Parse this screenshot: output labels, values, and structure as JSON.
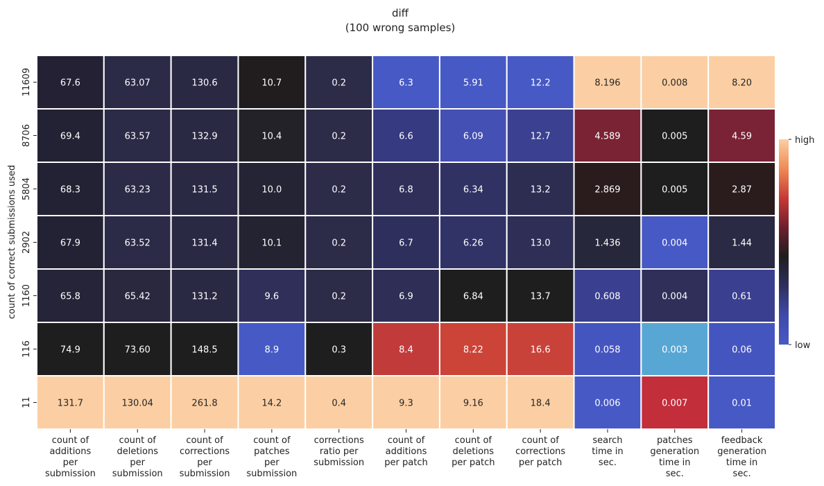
{
  "chart_data": {
    "type": "heatmap",
    "title": "diff",
    "subtitle": "(100 wrong samples)",
    "ylabel": "count of correct submissions used",
    "xlabel": "",
    "columns": [
      [
        "count of",
        "additions",
        "per",
        "submission"
      ],
      [
        "count of",
        "deletions",
        "per",
        "submission"
      ],
      [
        "count of",
        "corrections",
        "per",
        "submission"
      ],
      [
        "count of",
        "patches",
        "per",
        "submission"
      ],
      [
        "corrections",
        "ratio per",
        "submission"
      ],
      [
        "count of",
        "additions",
        "per patch"
      ],
      [
        "count of",
        "deletions",
        "per patch"
      ],
      [
        "count of",
        "corrections",
        "per patch"
      ],
      [
        "search",
        "time in",
        "sec."
      ],
      [
        "patches",
        "generation",
        "time in",
        "sec."
      ],
      [
        "feedback",
        "generation",
        "time in",
        "sec."
      ]
    ],
    "rows": [
      "11609",
      "8706",
      "5804",
      "2902",
      "1160",
      "116",
      "11"
    ],
    "values": [
      [
        "67.6",
        "63.07",
        "130.6",
        "10.7",
        "0.2",
        "6.3",
        "5.91",
        "12.2",
        "8.196",
        "0.008",
        "8.20"
      ],
      [
        "69.4",
        "63.57",
        "132.9",
        "10.4",
        "0.2",
        "6.6",
        "6.09",
        "12.7",
        "4.589",
        "0.005",
        "4.59"
      ],
      [
        "68.3",
        "63.23",
        "131.5",
        "10.0",
        "0.2",
        "6.8",
        "6.34",
        "13.2",
        "2.869",
        "0.005",
        "2.87"
      ],
      [
        "67.9",
        "63.52",
        "131.4",
        "10.1",
        "0.2",
        "6.7",
        "6.26",
        "13.0",
        "1.436",
        "0.004",
        "1.44"
      ],
      [
        "65.8",
        "65.42",
        "131.2",
        "9.6",
        "0.2",
        "6.9",
        "6.84",
        "13.7",
        "0.608",
        "0.004",
        "0.61"
      ],
      [
        "74.9",
        "73.60",
        "148.5",
        "8.9",
        "0.3",
        "8.4",
        "8.22",
        "16.6",
        "0.058",
        "0.003",
        "0.06"
      ],
      [
        "131.7",
        "130.04",
        "261.8",
        "14.2",
        "0.4",
        "9.3",
        "9.16",
        "18.4",
        "0.006",
        "0.007",
        "0.01"
      ]
    ],
    "colors": [
      [
        "#232133",
        "#2b2a47",
        "#2a2944",
        "#211d1e",
        "#2c2b48",
        "#4759c4",
        "#4759c4",
        "#4759c4",
        "#fbcfa3",
        "#fbcfa3",
        "#fbcfa3"
      ],
      [
        "#232234",
        "#2b2a47",
        "#2a2944",
        "#232228",
        "#2c2b48",
        "#363a80",
        "#4450b3",
        "#3b4190",
        "#7a2335",
        "#1f1e1f",
        "#7a2336"
      ],
      [
        "#232234",
        "#2b2a47",
        "#2a2944",
        "#252435",
        "#2c2b48",
        "#2f2f5a",
        "#303264",
        "#2d2d52",
        "#2a1b1c",
        "#1f1e1f",
        "#2a1b1c"
      ],
      [
        "#232234",
        "#2b2a47",
        "#2a2944",
        "#242331",
        "#2c2b48",
        "#2f2f5e",
        "#313366",
        "#2e2e56",
        "#26273a",
        "#4759c4",
        "#2a2a45"
      ],
      [
        "#252438",
        "#29283f",
        "#2a2944",
        "#2f2f5a",
        "#2c2b48",
        "#2e2e56",
        "#1f1e1f",
        "#1f1e1f",
        "#3a3f90",
        "#2f2f5a",
        "#3a3f90"
      ],
      [
        "#1f1e1f",
        "#1f1e1f",
        "#1f1e1f",
        "#4759c4",
        "#1f1e1f",
        "#c23b3b",
        "#cc4337",
        "#c9423a",
        "#4555c0",
        "#58a6d4",
        "#4555c0"
      ],
      [
        "#fbcfa3",
        "#fbcfa3",
        "#fbcfa3",
        "#fbcfa3",
        "#fbcfa3",
        "#fbcfa3",
        "#fbcfa3",
        "#fbcfa3",
        "#4759c4",
        "#c22e3a",
        "#4759c4"
      ]
    ],
    "text_colors": [
      [
        "light",
        "light",
        "light",
        "light",
        "light",
        "light",
        "light",
        "light",
        "dark",
        "dark",
        "dark"
      ],
      [
        "light",
        "light",
        "light",
        "light",
        "light",
        "light",
        "light",
        "light",
        "light",
        "light",
        "light"
      ],
      [
        "light",
        "light",
        "light",
        "light",
        "light",
        "light",
        "light",
        "light",
        "light",
        "light",
        "light"
      ],
      [
        "light",
        "light",
        "light",
        "light",
        "light",
        "light",
        "light",
        "light",
        "light",
        "light",
        "light"
      ],
      [
        "light",
        "light",
        "light",
        "light",
        "light",
        "light",
        "light",
        "light",
        "light",
        "light",
        "light"
      ],
      [
        "light",
        "light",
        "light",
        "light",
        "light",
        "light",
        "light",
        "light",
        "light",
        "light",
        "light"
      ],
      [
        "dark",
        "dark",
        "dark",
        "dark",
        "dark",
        "dark",
        "dark",
        "dark",
        "light",
        "light",
        "light"
      ]
    ],
    "colorbar": {
      "high_label": "high",
      "low_label": "low",
      "stops": [
        "#fbcfa3",
        "#ef8a55",
        "#c63a36",
        "#6e1f2e",
        "#1f1e1f",
        "#2f2f5e",
        "#3f4aa8",
        "#4759c4"
      ]
    },
    "grid": true,
    "legend": "right"
  }
}
